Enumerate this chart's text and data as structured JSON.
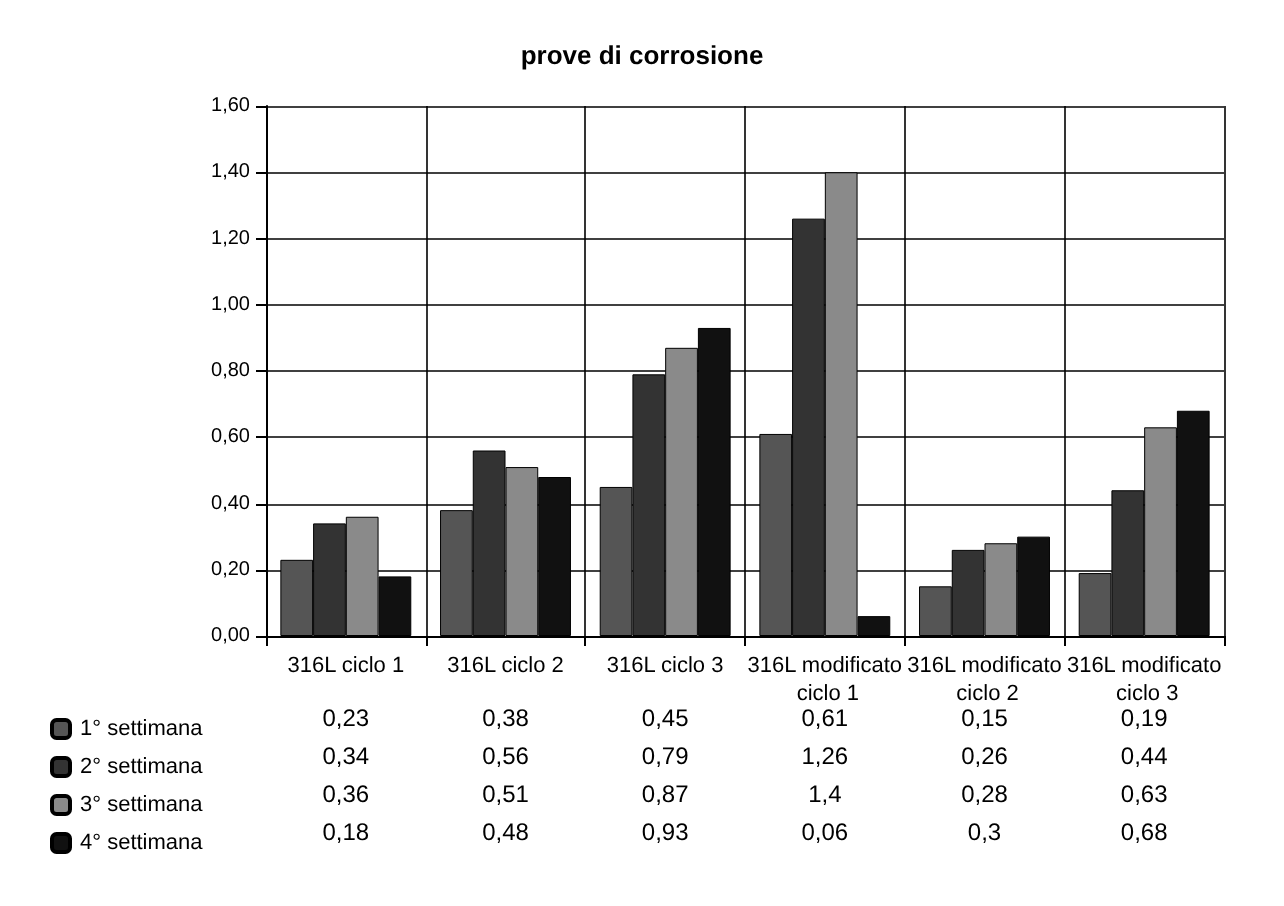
{
  "chart_data": {
    "type": "bar",
    "title": "prove di corrosione",
    "categories": [
      "316L ciclo 1",
      "316L ciclo 2",
      "316L ciclo 3",
      "316L modificato ciclo 1",
      "316L modificato ciclo 2",
      "316L modificato ciclo 3"
    ],
    "series": [
      {
        "name": "1° settimana",
        "color": "#555555",
        "values": [
          0.23,
          0.38,
          0.45,
          0.61,
          0.15,
          0.19
        ],
        "value_labels": [
          "0,23",
          "0,38",
          "0,45",
          "0,61",
          "0,15",
          "0,19"
        ]
      },
      {
        "name": "2° settimana",
        "color": "#333333",
        "values": [
          0.34,
          0.56,
          0.79,
          1.26,
          0.26,
          0.44
        ],
        "value_labels": [
          "0,34",
          "0,56",
          "0,79",
          "1,26",
          "0,26",
          "0,44"
        ]
      },
      {
        "name": "3° settimana",
        "color": "#8a8a8a",
        "values": [
          0.36,
          0.51,
          0.87,
          1.4,
          0.28,
          0.63
        ],
        "value_labels": [
          "0,36",
          "0,51",
          "0,87",
          "1,4",
          "0,28",
          "0,63"
        ]
      },
      {
        "name": "4° settimana",
        "color": "#111111",
        "values": [
          0.18,
          0.48,
          0.93,
          0.06,
          0.3,
          0.68
        ],
        "value_labels": [
          "0,18",
          "0,48",
          "0,93",
          "0,06",
          "0,3",
          "0,68"
        ]
      }
    ],
    "ylim": [
      0,
      1.6
    ],
    "yticks": [
      {
        "value": 0,
        "label": "0,00"
      },
      {
        "value": 0.2,
        "label": "0,20"
      },
      {
        "value": 0.4,
        "label": "0,40"
      },
      {
        "value": 0.6,
        "label": "0,60"
      },
      {
        "value": 0.8,
        "label": "0,80"
      },
      {
        "value": 1,
        "label": "1,00"
      },
      {
        "value": 1.2,
        "label": "1,20"
      },
      {
        "value": 1.4,
        "label": "1,40"
      },
      {
        "value": 1.6,
        "label": "1,60"
      }
    ],
    "grid": true,
    "legend": "bottom left"
  }
}
